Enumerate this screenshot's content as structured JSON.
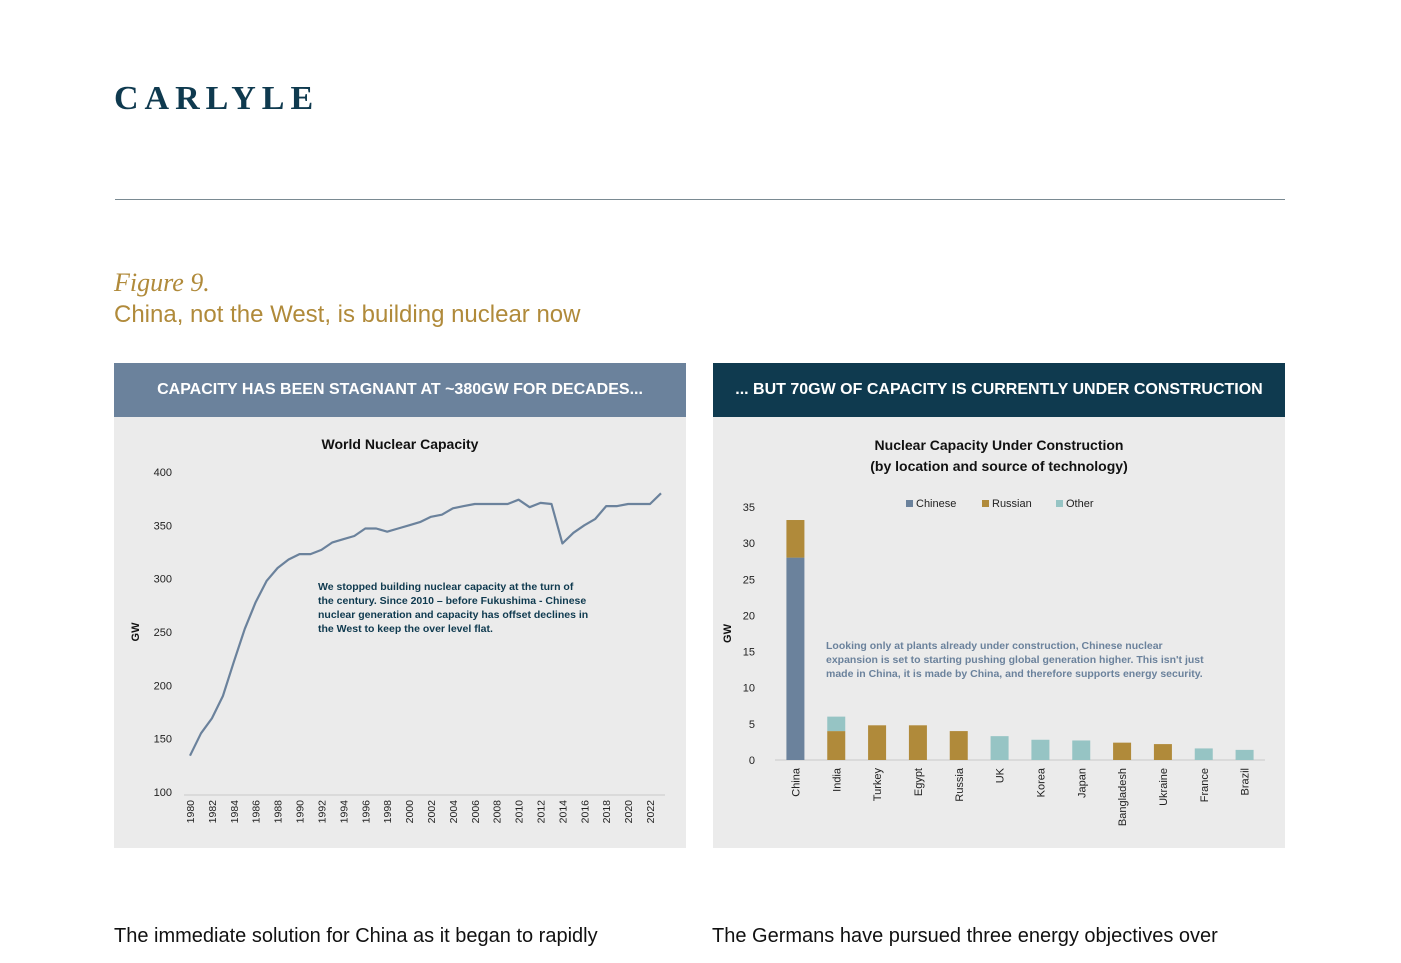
{
  "logo": "CARLYLE",
  "figure": {
    "label": "Figure 9.",
    "title": "China, not the West, is building nuclear now"
  },
  "left_panel": {
    "header": "CAPACITY HAS BEEN STAGNANT AT ~380GW FOR DECADES...",
    "annotation": [
      "We stopped building nuclear capacity at the turn of",
      "the century. Since 2010 – before Fukushima -  Chinese",
      "nuclear generation and capacity has offset declines in",
      "the West to keep the over level flat."
    ]
  },
  "right_panel": {
    "header": "... BUT 70GW OF CAPACITY IS CURRENTLY UNDER CONSTRUCTION",
    "annotation": [
      "Looking only at plants already under construction, Chinese nuclear",
      "expansion is set to starting pushing global generation higher. This isn't just",
      "made in China, it is made by China, and therefore supports energy security."
    ]
  },
  "body": {
    "left": "The immediate solution for China as it began to rapidly",
    "right": "The Germans have pursued three energy objectives over"
  },
  "colors": {
    "brand": "#0f3a4f",
    "gold": "#b08a3a",
    "slate": "#6b829c",
    "chinese": "#6b829c",
    "russian": "#b08a3a",
    "other": "#96c4c4"
  },
  "chart_data": [
    {
      "type": "line",
      "title": "World Nuclear Capacity",
      "xlabel": "",
      "ylabel": "GW",
      "ylim": [
        100,
        400
      ],
      "yticks": [
        100,
        150,
        200,
        250,
        300,
        350,
        400
      ],
      "xticks": [
        "1980",
        "1982",
        "1984",
        "1986",
        "1988",
        "1990",
        "1992",
        "1994",
        "1996",
        "1998",
        "2000",
        "2002",
        "2004",
        "2006",
        "2008",
        "2010",
        "2012",
        "2014",
        "2016",
        "2018",
        "2020",
        "2022"
      ],
      "x": [
        1980,
        1981,
        1982,
        1983,
        1984,
        1985,
        1986,
        1987,
        1988,
        1989,
        1990,
        1991,
        1992,
        1993,
        1994,
        1995,
        1996,
        1997,
        1998,
        1999,
        2000,
        2001,
        2002,
        2003,
        2004,
        2005,
        2006,
        2007,
        2008,
        2009,
        2010,
        2011,
        2012,
        2013,
        2014,
        2015,
        2016,
        2017,
        2018,
        2019,
        2020,
        2021,
        2022,
        2023
      ],
      "series": [
        {
          "values": [
            134,
            155,
            169,
            190,
            222,
            253,
            278,
            298,
            310,
            318,
            323,
            323,
            327,
            334,
            337,
            340,
            347,
            347,
            344,
            347,
            350,
            353,
            358,
            360,
            366,
            368,
            370,
            370,
            370,
            370,
            374,
            367,
            371,
            370,
            333,
            343,
            350,
            356,
            368,
            368,
            370,
            370,
            370,
            380
          ]
        }
      ],
      "grid": false,
      "legend": "none"
    },
    {
      "type": "bar",
      "title": [
        "Nuclear Capacity Under Construction",
        "(by location and source of technology)"
      ],
      "xlabel": "",
      "ylabel": "GW",
      "ylim": [
        0,
        35
      ],
      "yticks": [
        0,
        5,
        10,
        15,
        20,
        25,
        30,
        35
      ],
      "stacked": true,
      "categories": [
        "China",
        "India",
        "Turkey",
        "Egypt",
        "Russia",
        "UK",
        "Korea",
        "Japan",
        "Bangladesh",
        "Ukraine",
        "France",
        "Brazil"
      ],
      "series": [
        {
          "name": "Chinese",
          "values": [
            28,
            0,
            0,
            0,
            0,
            0,
            0,
            0,
            0,
            0,
            0,
            0
          ]
        },
        {
          "name": "Russian",
          "values": [
            5.2,
            4,
            4.8,
            4.8,
            4,
            0,
            0,
            0,
            2.4,
            2.2,
            0,
            0
          ]
        },
        {
          "name": "Other",
          "values": [
            0,
            2,
            0,
            0,
            0,
            3.3,
            2.8,
            2.7,
            0,
            0,
            1.6,
            1.4
          ]
        }
      ],
      "grid": false,
      "legend": "top-center"
    }
  ]
}
